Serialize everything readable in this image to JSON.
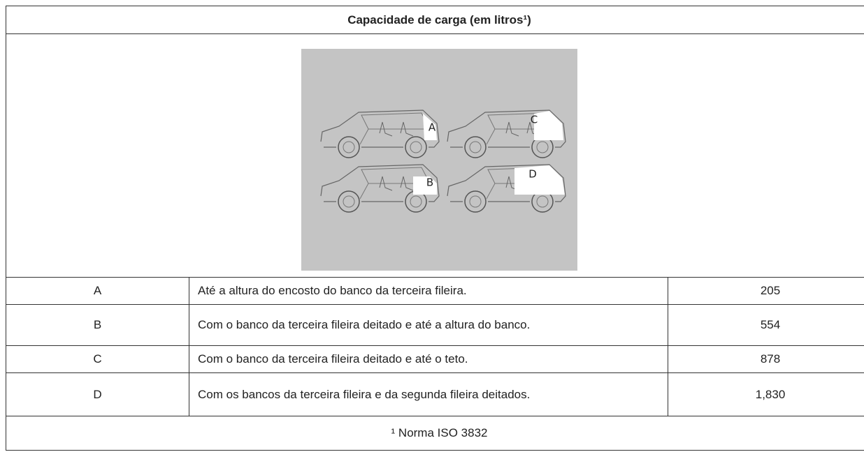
{
  "table": {
    "title": "Capacidade de carga (em litros¹)",
    "figure": {
      "labels": [
        "A",
        "C",
        "B",
        "D"
      ]
    },
    "rows": [
      [
        "A",
        "Até a altura do encosto do banco da terceira fileira.",
        "205"
      ],
      [
        "B",
        "Com o banco da terceira fileira deitado e até a altura do banco.",
        "554"
      ],
      [
        "C",
        "Com o banco da terceira fileira deitado e até o teto.",
        "878"
      ],
      [
        "D",
        "Com os bancos da terceira fileira e da segunda fileira deitados.",
        "1,830"
      ]
    ],
    "footnote": "¹ Norma ISO 3832"
  }
}
